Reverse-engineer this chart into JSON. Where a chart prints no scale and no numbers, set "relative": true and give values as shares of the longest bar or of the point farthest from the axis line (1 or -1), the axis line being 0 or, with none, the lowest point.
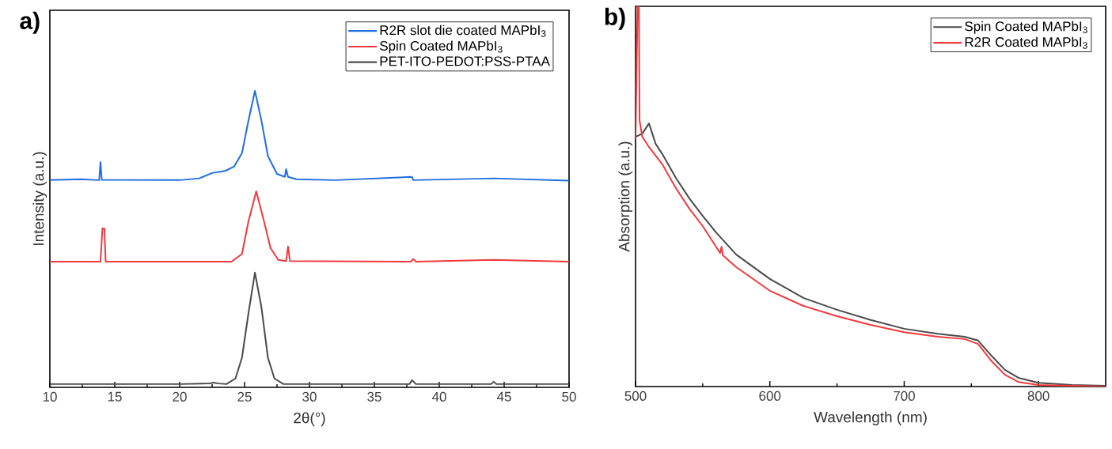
{
  "chart_data": [
    {
      "type": "line",
      "relative": true,
      "xlabel": "2θ(°)",
      "ylabel": "Intensity (a.u.)",
      "xlim": [
        10,
        50
      ],
      "xticks": [
        10,
        15,
        20,
        25,
        30,
        35,
        40,
        45,
        50
      ],
      "legend": "top right",
      "annotations": [
        "**a)**"
      ],
      "series": [
        {
          "name": "R2R slot die coated MAPbI$_{3}$",
          "color": "#1f6fe0",
          "x": [
            10,
            12.4,
            13.8,
            13.9,
            14.0,
            20,
            21.5,
            22.5,
            23.5,
            24.2,
            24.8,
            25.3,
            25.8,
            26.3,
            26.8,
            27.5,
            28.1,
            28.2,
            28.35,
            29,
            32,
            37.9,
            38,
            44.2,
            50
          ],
          "values": [
            0.699,
            0.702,
            0.699,
            0.76,
            0.7,
            0.699,
            0.705,
            0.723,
            0.73,
            0.745,
            0.79,
            0.9,
            1,
            0.9,
            0.78,
            0.72,
            0.71,
            0.736,
            0.71,
            0.702,
            0.699,
            0.71,
            0.699,
            0.705,
            0.697
          ]
        },
        {
          "name": "Spin Coated MAPbI$_{3}$",
          "color": "#f0393e",
          "x": [
            10,
            13.9,
            14.05,
            14.2,
            14.3,
            24,
            24.8,
            25.3,
            25.9,
            26.5,
            27,
            27.6,
            28.2,
            28.35,
            28.5,
            37.8,
            38,
            38.2,
            44.2,
            50
          ],
          "values": [
            0.424,
            0.424,
            0.536,
            0.536,
            0.424,
            0.424,
            0.45,
            0.56,
            0.661,
            0.56,
            0.47,
            0.43,
            0.426,
            0.475,
            0.426,
            0.424,
            0.433,
            0.424,
            0.43,
            0.424
          ]
        },
        {
          "name": "PET-ITO-PEDOT:PSS-PTAA",
          "color": "#4a4a4a",
          "x": [
            10,
            20,
            22.3,
            22.6,
            23,
            23.6,
            24.3,
            24.8,
            25.3,
            25.8,
            26.3,
            26.8,
            27.3,
            28,
            37.7,
            37.9,
            38.2,
            44,
            44.2,
            44.4,
            50
          ],
          "values": [
            0.011,
            0.011,
            0.013,
            0.016,
            0.013,
            0.011,
            0.03,
            0.1,
            0.25,
            0.387,
            0.27,
            0.1,
            0.03,
            0.011,
            0.011,
            0.024,
            0.011,
            0.011,
            0.019,
            0.011,
            0.011
          ]
        }
      ]
    },
    {
      "type": "line",
      "relative": true,
      "xlabel": "Wavelength (nm)",
      "ylabel": "Absorption (a.u.)",
      "xlim": [
        500,
        850
      ],
      "xticks": [
        500,
        600,
        700,
        800
      ],
      "legend": "top right",
      "annotations": [
        "**b)**"
      ],
      "series": [
        {
          "name": "Spin Coated MAPbI$_{3}$",
          "color": "#4a4a4a",
          "x": [
            500,
            505,
            510,
            515,
            520,
            530,
            540,
            550,
            560,
            575,
            600,
            625,
            650,
            675,
            700,
            725,
            745,
            755,
            765,
            775,
            785,
            800,
            825,
            850
          ],
          "values": [
            0.657,
            0.665,
            0.692,
            0.638,
            0.611,
            0.549,
            0.495,
            0.449,
            0.405,
            0.347,
            0.283,
            0.233,
            0.202,
            0.175,
            0.152,
            0.139,
            0.131,
            0.121,
            0.081,
            0.044,
            0.023,
            0.01,
            0.004,
            0.002
          ]
        },
        {
          "name": "R2R Coated MAPbI$_{3}$",
          "color": "#f0393e",
          "x": [
            500,
            501.5,
            502.5,
            503,
            505,
            510,
            520,
            530,
            540,
            550,
            563,
            564,
            565,
            575,
            600,
            625,
            650,
            675,
            700,
            725,
            745,
            755,
            765,
            775,
            785,
            800,
            850
          ],
          "values": [
            0.65,
            1,
            1,
            0.7,
            0.657,
            0.63,
            0.584,
            0.522,
            0.468,
            0.422,
            0.351,
            0.368,
            0.345,
            0.314,
            0.252,
            0.212,
            0.185,
            0.162,
            0.143,
            0.131,
            0.125,
            0.112,
            0.067,
            0.031,
            0.012,
            0.004,
            0
          ]
        }
      ]
    }
  ]
}
